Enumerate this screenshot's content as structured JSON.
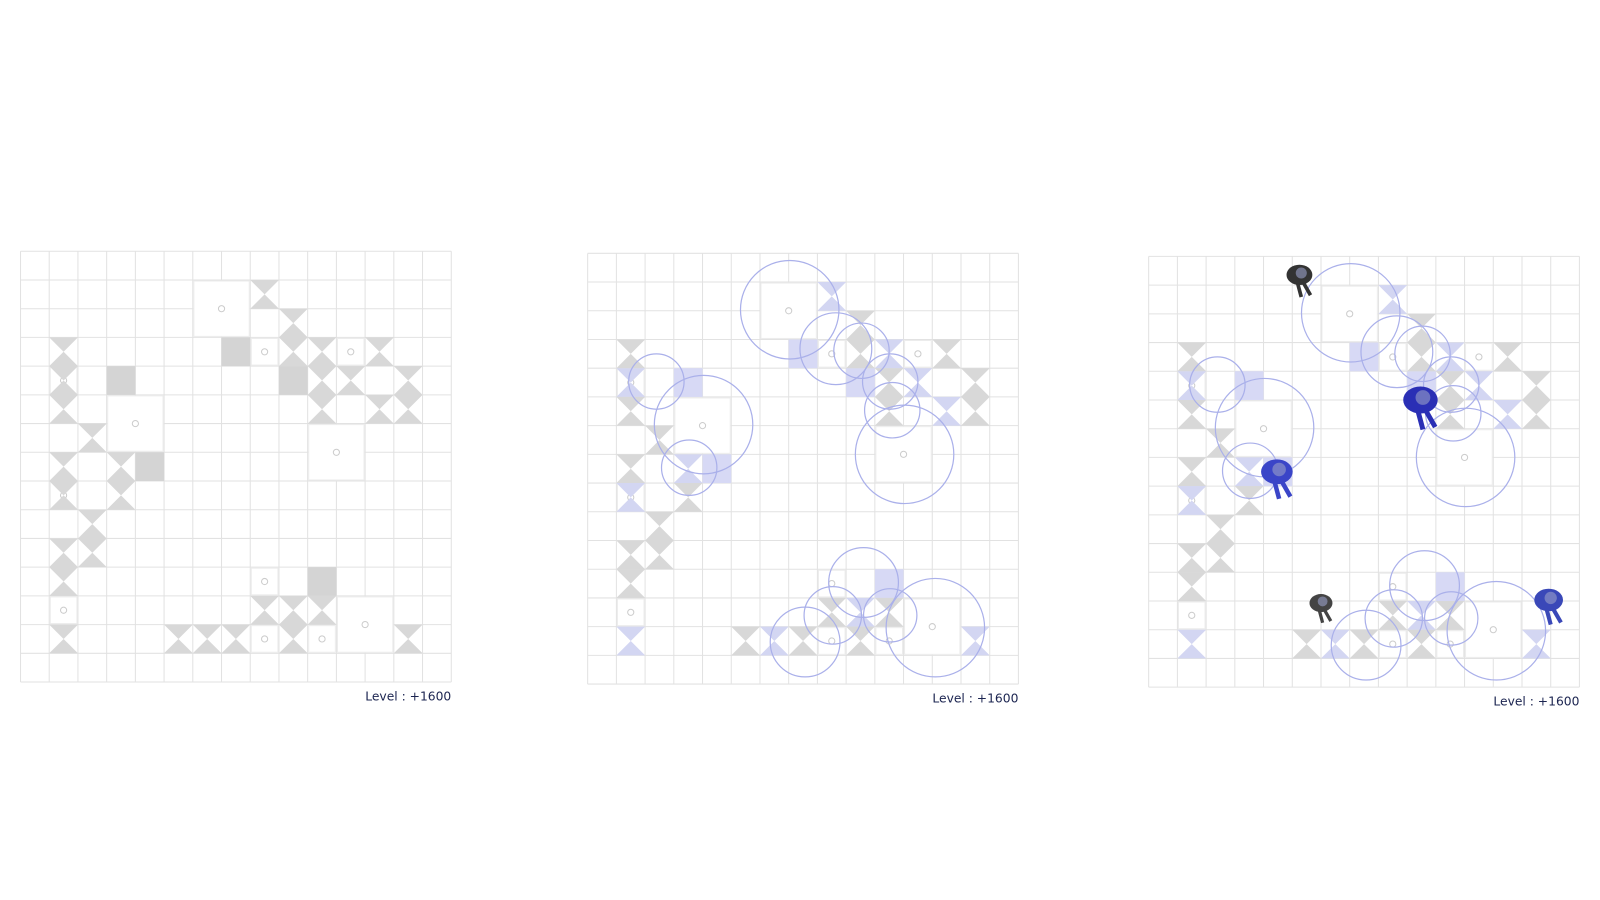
{
  "panels": [
    {
      "level_label": "Level : +1600"
    },
    {
      "level_label": "Level : +1600"
    },
    {
      "level_label": "Level : +1600"
    }
  ]
}
